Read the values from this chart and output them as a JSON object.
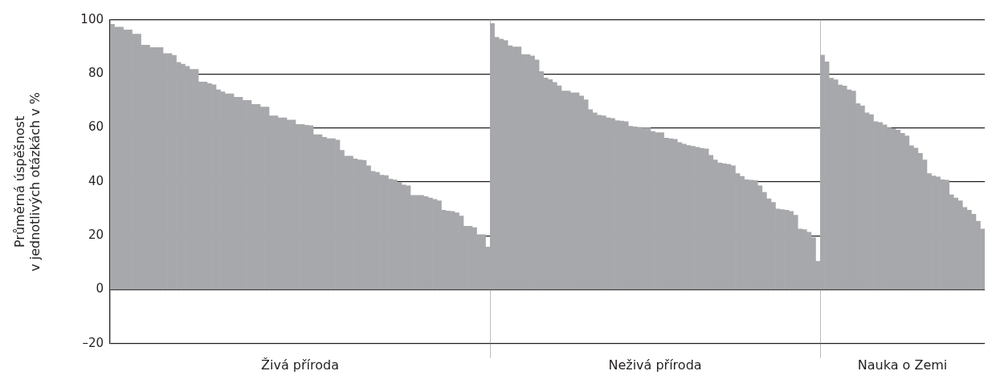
{
  "chart_data": [
    {
      "type": "bar",
      "ylabel": "Průměrná úspěšnost\nv jednotlivých otázkách v %",
      "xlabel": "Živá příroda",
      "categories": [
        null,
        null,
        null,
        null,
        null,
        null,
        null,
        null,
        null,
        null,
        null,
        null,
        null,
        null,
        null,
        null,
        null,
        null,
        null,
        null,
        null,
        null,
        null,
        null,
        null,
        null,
        null,
        null,
        null,
        null,
        null,
        null,
        null,
        null,
        null,
        null,
        null,
        null,
        null,
        null,
        null,
        null,
        null,
        null,
        null,
        null,
        null,
        null,
        null,
        null,
        null,
        null,
        null,
        null,
        null,
        null,
        null,
        null,
        null,
        null,
        null,
        null,
        null,
        null,
        null,
        null,
        null,
        null,
        null,
        null,
        null,
        null,
        null,
        null,
        null,
        null,
        null,
        null,
        null,
        null,
        null,
        null,
        null,
        null,
        null,
        null
      ],
      "values": [
        98.4,
        97.4,
        97.4,
        96.3,
        96.3,
        94.8,
        94.8,
        90.7,
        90.7,
        89.8,
        89.8,
        89.8,
        87.6,
        87.6,
        86.9,
        84.3,
        83.6,
        82.8,
        81.7,
        81.7,
        77,
        77,
        76.4,
        76,
        74.1,
        73.4,
        72.6,
        72.6,
        71.4,
        71.4,
        70.2,
        70.2,
        68.7,
        68.7,
        67.7,
        67.7,
        64.5,
        64.5,
        63.7,
        63.7,
        62.9,
        62.9,
        61.3,
        61.3,
        61,
        60.8,
        57.5,
        57.5,
        56.5,
        56,
        56,
        55.5,
        51.7,
        49.5,
        49.5,
        48.5,
        48.1,
        48,
        46,
        43.9,
        43.5,
        42.5,
        42.3,
        41,
        40.7,
        39.8,
        38.8,
        38.5,
        35,
        35,
        35,
        34.5,
        34,
        33.5,
        33,
        29.5,
        29.2,
        29,
        28.5,
        27.3,
        23.5,
        23.5,
        23,
        20.4,
        20.4,
        15.8
      ],
      "color": "#a7a8ab",
      "ylim": [
        -20,
        100
      ],
      "yticks": [
        {
          "value": -20,
          "label": "–20"
        },
        0,
        20,
        40,
        60,
        80,
        100
      ],
      "grid": "y",
      "tick_labels": "y"
    },
    {
      "type": "bar",
      "xlabel": "Neživá příroda",
      "categories": [
        null,
        null,
        null,
        null,
        null,
        null,
        null,
        null,
        null,
        null,
        null,
        null,
        null,
        null,
        null,
        null,
        null,
        null,
        null,
        null,
        null,
        null,
        null,
        null,
        null,
        null,
        null,
        null,
        null,
        null,
        null,
        null,
        null,
        null,
        null,
        null,
        null,
        null,
        null,
        null,
        null,
        null,
        null,
        null,
        null,
        null,
        null,
        null,
        null,
        null,
        null,
        null,
        null,
        null,
        null,
        null,
        null,
        null,
        null,
        null,
        null,
        null,
        null,
        null,
        null,
        null,
        null,
        null,
        null,
        null,
        null,
        null,
        null,
        null
      ],
      "values": [
        98.7,
        93.6,
        92.9,
        92.4,
        90.5,
        90,
        90,
        87.2,
        87.2,
        86.7,
        85.2,
        80.9,
        78.5,
        77.9,
        76.9,
        75.6,
        73.7,
        73.7,
        73,
        73,
        71.8,
        70.4,
        66.8,
        65.6,
        64.7,
        64.5,
        63.7,
        63.5,
        62.7,
        62.5,
        62.3,
        60.6,
        60.4,
        60.2,
        60,
        60,
        58.7,
        58.2,
        58.2,
        56.2,
        56,
        55.8,
        54.6,
        54,
        53.5,
        53.2,
        52.8,
        52.4,
        52.2,
        49.8,
        48.1,
        47,
        46.7,
        46.5,
        46,
        43.1,
        42,
        40.8,
        40.6,
        40.5,
        38.5,
        36.1,
        33.7,
        32.4,
        29.9,
        29.7,
        29.5,
        29,
        27.6,
        22.5,
        22.3,
        21.3,
        19.3,
        10.5
      ],
      "color": "#a7a8ab",
      "ylim": [
        -20,
        100
      ],
      "yticks": [
        -20,
        0,
        20,
        40,
        60,
        80,
        100
      ],
      "grid": "y",
      "tick_labels": false
    },
    {
      "type": "bar",
      "xlabel": "Nauka o Zemi",
      "categories": [
        null,
        null,
        null,
        null,
        null,
        null,
        null,
        null,
        null,
        null,
        null,
        null,
        null,
        null,
        null,
        null,
        null,
        null,
        null,
        null,
        null,
        null,
        null,
        null,
        null,
        null,
        null,
        null,
        null,
        null,
        null,
        null,
        null,
        null,
        null,
        null,
        null
      ],
      "values": [
        87,
        84.5,
        78.4,
        77.8,
        75.9,
        75.5,
        74.1,
        73.7,
        69,
        68.2,
        65.6,
        64.9,
        62.3,
        62,
        61.1,
        60,
        59.8,
        59.2,
        58,
        57,
        53.4,
        52.5,
        50.6,
        48.1,
        43.1,
        42.2,
        41.8,
        40.8,
        40.6,
        35.2,
        34,
        33,
        30.5,
        29.5,
        28,
        25.4,
        22.5
      ],
      "color": "#a7a8ab",
      "ylim": [
        -20,
        100
      ],
      "yticks": [
        -20,
        0,
        20,
        40,
        60,
        80,
        100
      ],
      "grid": "y",
      "tick_labels": false
    }
  ]
}
